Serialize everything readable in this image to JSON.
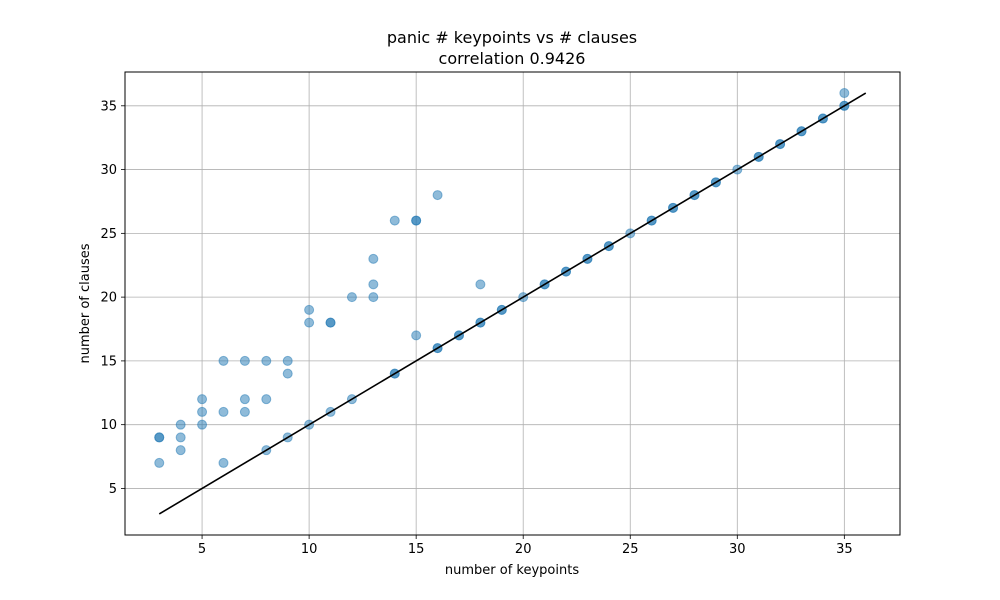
{
  "chart_data": {
    "type": "scatter",
    "title": "panic # keypoints vs # clauses",
    "subtitle": "correlation 0.9426",
    "xlabel": "number of keypoints",
    "ylabel": "number of clauses",
    "xlim": [
      1.4,
      37.6
    ],
    "ylim": [
      1.35,
      37.65
    ],
    "xticks": [
      5,
      10,
      15,
      20,
      25,
      30,
      35
    ],
    "yticks": [
      5,
      10,
      15,
      20,
      25,
      30,
      35
    ],
    "grid": true,
    "point_color": "#1f77b4",
    "point_alpha": 0.5,
    "line_color": "#000000",
    "points": [
      [
        3,
        7
      ],
      [
        3,
        9
      ],
      [
        3,
        9
      ],
      [
        4,
        8
      ],
      [
        4,
        9
      ],
      [
        4,
        10
      ],
      [
        5,
        10
      ],
      [
        5,
        11
      ],
      [
        5,
        12
      ],
      [
        6,
        7
      ],
      [
        6,
        11
      ],
      [
        6,
        15
      ],
      [
        7,
        11
      ],
      [
        7,
        12
      ],
      [
        7,
        15
      ],
      [
        8,
        8
      ],
      [
        8,
        12
      ],
      [
        8,
        15
      ],
      [
        9,
        9
      ],
      [
        9,
        14
      ],
      [
        9,
        15
      ],
      [
        10,
        10
      ],
      [
        10,
        18
      ],
      [
        10,
        19
      ],
      [
        11,
        11
      ],
      [
        11,
        18
      ],
      [
        11,
        18
      ],
      [
        12,
        12
      ],
      [
        12,
        20
      ],
      [
        13,
        20
      ],
      [
        13,
        21
      ],
      [
        13,
        23
      ],
      [
        14,
        14
      ],
      [
        14,
        14
      ],
      [
        14,
        26
      ],
      [
        15,
        17
      ],
      [
        15,
        26
      ],
      [
        15,
        26
      ],
      [
        16,
        16
      ],
      [
        16,
        16
      ],
      [
        16,
        28
      ],
      [
        17,
        17
      ],
      [
        17,
        17
      ],
      [
        18,
        18
      ],
      [
        18,
        18
      ],
      [
        18,
        21
      ],
      [
        19,
        19
      ],
      [
        19,
        19
      ],
      [
        20,
        20
      ],
      [
        21,
        21
      ],
      [
        21,
        21
      ],
      [
        22,
        22
      ],
      [
        22,
        22
      ],
      [
        23,
        23
      ],
      [
        23,
        23
      ],
      [
        24,
        24
      ],
      [
        24,
        24
      ],
      [
        25,
        25
      ],
      [
        26,
        26
      ],
      [
        26,
        26
      ],
      [
        27,
        27
      ],
      [
        27,
        27
      ],
      [
        28,
        28
      ],
      [
        28,
        28
      ],
      [
        29,
        29
      ],
      [
        29,
        29
      ],
      [
        30,
        30
      ],
      [
        31,
        31
      ],
      [
        31,
        31
      ],
      [
        32,
        32
      ],
      [
        32,
        32
      ],
      [
        33,
        33
      ],
      [
        33,
        33
      ],
      [
        34,
        34
      ],
      [
        34,
        34
      ],
      [
        35,
        35
      ],
      [
        35,
        35
      ],
      [
        35,
        36
      ]
    ],
    "fit_line": {
      "x": [
        3,
        36
      ],
      "y": [
        3,
        36
      ]
    }
  }
}
